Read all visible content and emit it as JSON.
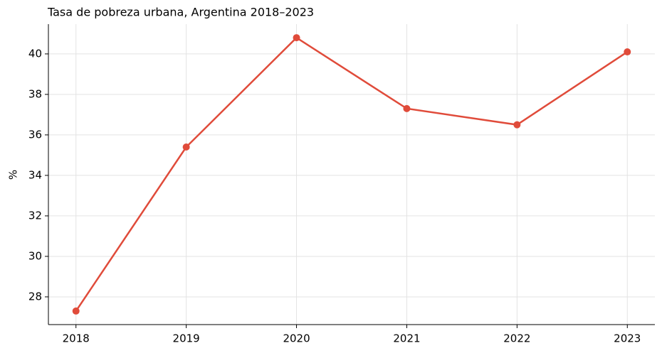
{
  "chart_data": {
    "type": "line",
    "title": "Tasa de pobreza urbana, Argentina 2018–2023",
    "ylabel": "%",
    "x": [
      2018,
      2019,
      2020,
      2021,
      2022,
      2023
    ],
    "series": [
      {
        "name": "Tasa de pobreza urbana",
        "color": "#e04b3a",
        "values": [
          27.3,
          35.4,
          40.8,
          37.3,
          36.5,
          40.1
        ]
      }
    ],
    "xlim": [
      2017.75,
      2023.25
    ],
    "xticks": [
      2018,
      2019,
      2020,
      2021,
      2022,
      2023
    ],
    "ylim": [
      26.63,
      41.47
    ],
    "yticks": [
      28,
      30,
      32,
      34,
      36,
      38,
      40
    ],
    "grid": true
  }
}
